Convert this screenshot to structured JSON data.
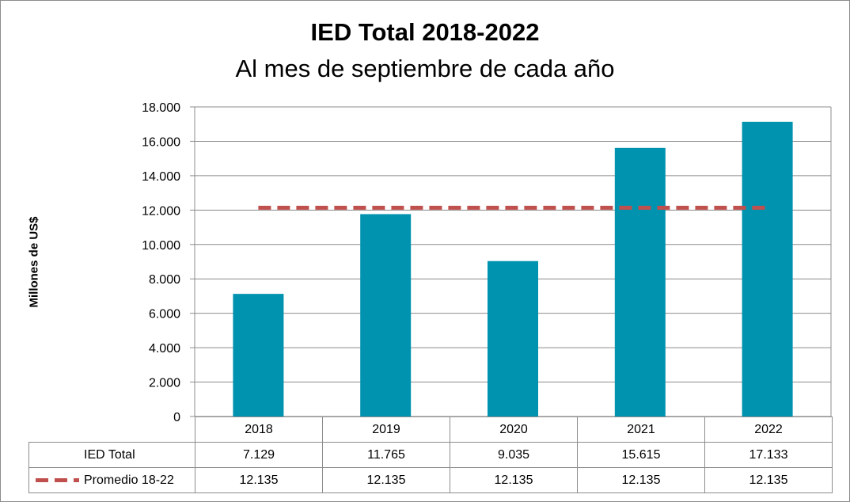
{
  "chart_data": {
    "type": "bar",
    "title": "IED Total 2018-2022",
    "subtitle": "Al mes de septiembre de cada año",
    "ylabel": "Millones de US$",
    "xlabel": "",
    "categories": [
      "2018",
      "2019",
      "2020",
      "2021",
      "2022"
    ],
    "ylim": [
      0,
      18000
    ],
    "yticks": [
      "0",
      "2.000",
      "4.000",
      "6.000",
      "8.000",
      "10.000",
      "12.000",
      "14.000",
      "16.000",
      "18.000"
    ],
    "ytick_values": [
      0,
      2000,
      4000,
      6000,
      8000,
      10000,
      12000,
      14000,
      16000,
      18000
    ],
    "grid": true,
    "legend_placement": "data-table",
    "series": [
      {
        "name": "IED Total",
        "kind": "bar",
        "color": "#0093b0",
        "values": [
          7129,
          11765,
          9035,
          15615,
          17133
        ],
        "labels": [
          "7.129",
          "11.765",
          "9.035",
          "15.615",
          "17.133"
        ]
      },
      {
        "name": "Promedio 18-22",
        "kind": "dashed-line",
        "color": "#c0504d",
        "values": [
          12135,
          12135,
          12135,
          12135,
          12135
        ],
        "labels": [
          "12.135",
          "12.135",
          "12.135",
          "12.135",
          "12.135"
        ]
      }
    ]
  }
}
